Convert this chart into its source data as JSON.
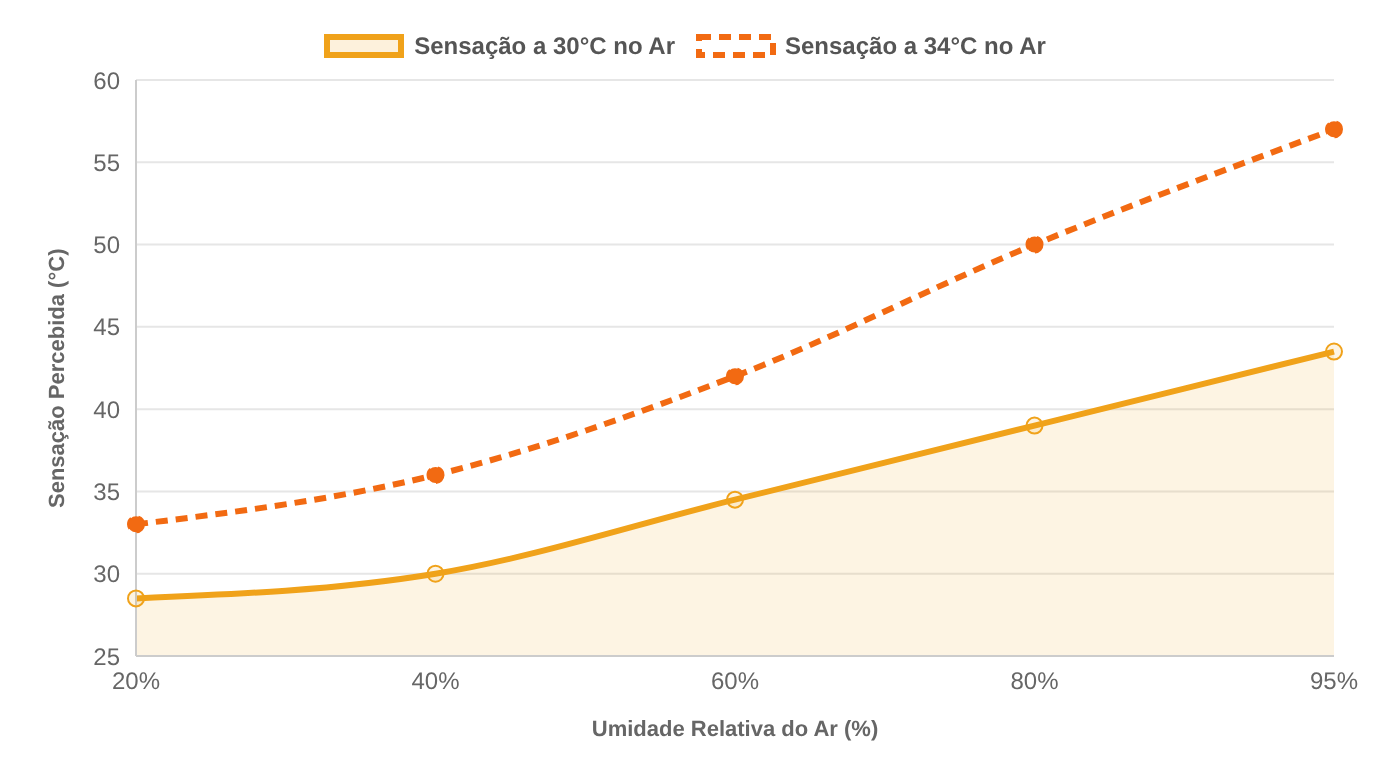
{
  "chart_data": {
    "type": "line",
    "xlabel": "Umidade Relativa do Ar (%)",
    "ylabel": "Sensação Percebida (°C)",
    "categories": [
      "20%",
      "40%",
      "60%",
      "80%",
      "95%"
    ],
    "series": [
      {
        "name": "Sensação a 30°C no Ar",
        "type": "area",
        "color": "#f0a21a",
        "values": [
          28.5,
          30,
          34.5,
          39,
          43.5
        ],
        "line_style": "solid"
      },
      {
        "name": "Sensação a 34°C no Ar",
        "color": "#f26a12",
        "values": [
          33,
          36,
          42,
          50,
          57
        ],
        "line_style": "dashed"
      }
    ],
    "ylim": [
      25,
      60
    ],
    "yticks": [
      25,
      30,
      35,
      40,
      45,
      50,
      55,
      60
    ],
    "grid": "y",
    "legend": "top",
    "marker": "circle"
  }
}
